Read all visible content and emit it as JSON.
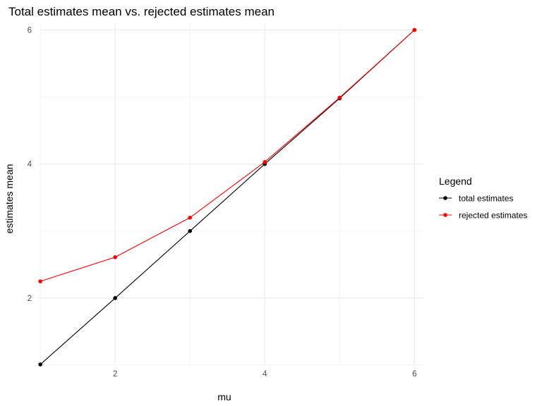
{
  "chart_data": {
    "type": "line",
    "title": "Total estimates mean vs. rejected estimates mean",
    "xlabel": "mu",
    "ylabel": "estimates mean",
    "x": [
      1,
      2,
      3,
      4,
      5,
      6
    ],
    "xticks": [
      2,
      4,
      6
    ],
    "yticks": [
      2,
      4,
      6
    ],
    "xlim": [
      0.98,
      6.12
    ],
    "ylim": [
      1.0,
      6.1
    ],
    "grid": true,
    "legend": {
      "title": "Legend",
      "position": "right"
    },
    "series": [
      {
        "name": "total estimates",
        "color": "#000000",
        "values": [
          1.01,
          2.0,
          3.0,
          4.0,
          4.98,
          6.0
        ]
      },
      {
        "name": "rejected estimates",
        "color": "#ff0000",
        "values": [
          2.25,
          2.61,
          3.2,
          4.03,
          4.99,
          6.0
        ]
      }
    ]
  }
}
